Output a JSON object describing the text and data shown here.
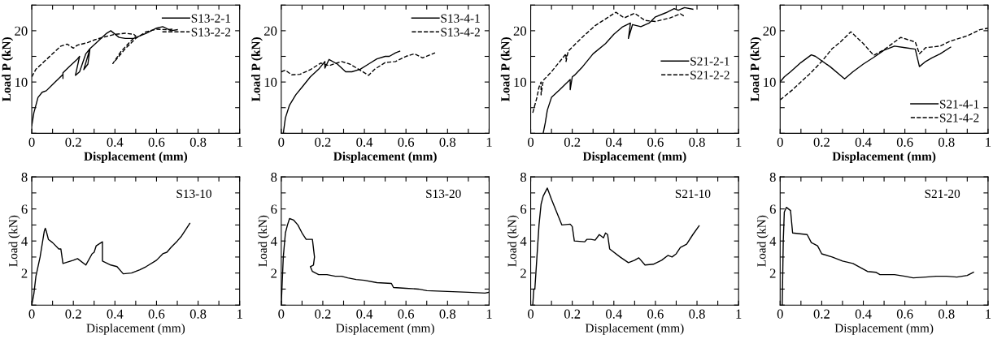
{
  "chart_data": [
    {
      "type": "line",
      "xlabel": "Displacement (mm)",
      "ylabel": "Load P (kN)",
      "xlim": [
        0,
        1
      ],
      "ylim": [
        0,
        25
      ],
      "xticks": [
        0,
        {
          "value": 0.1,
          "label": null
        },
        0.2,
        {
          "value": 0.3,
          "label": null
        },
        0.4,
        {
          "value": 0.5,
          "label": null
        },
        0.6,
        {
          "value": 0.7,
          "label": null
        },
        0.8,
        {
          "value": 0.9,
          "label": null
        },
        1
      ],
      "yticks": [
        {
          "value": 0,
          "label": null
        },
        {
          "value": 5,
          "label": null
        },
        10,
        {
          "value": 15,
          "label": null
        },
        20,
        {
          "value": 25,
          "label": null
        }
      ],
      "legend": "top right",
      "series": [
        {
          "name": "S13-2-1",
          "color": "#000000",
          "line_style": "solid",
          "x": [
            0,
            0.01,
            0.03,
            0.05,
            0.07,
            0.1,
            0.15,
            0.15,
            0.15,
            0.18,
            0.22,
            0.23,
            0.21,
            0.23,
            0.26,
            0.28,
            0.25,
            0.27,
            0.28,
            0.32,
            0.36,
            0.38,
            0.42,
            0.45,
            0.49,
            0.55,
            0.6,
            0.63,
            0.67,
            0.7
          ],
          "values": [
            1.5,
            4,
            7,
            8,
            8.3,
            9.5,
            11.5,
            10.7,
            11.8,
            13,
            14.5,
            15,
            11.3,
            12,
            15.5,
            16.5,
            12.4,
            13.5,
            16.5,
            18,
            19.5,
            20,
            18.7,
            18.5,
            18.5,
            19.5,
            20.5,
            20.8,
            20,
            20.2
          ]
        },
        {
          "name": "S13-2-2",
          "color": "#000000",
          "line_style": "dashed",
          "x": [
            0,
            0.02,
            0.06,
            0.1,
            0.14,
            0.17,
            0.2,
            0.22,
            0.27,
            0.3,
            0.35,
            0.4,
            0.45,
            0.49,
            0.5,
            0.43,
            0.39,
            0.45,
            0.5,
            0.55,
            0.6,
            0.65,
            0.68
          ],
          "values": [
            11,
            12.5,
            14,
            15.5,
            17,
            17.4,
            16.6,
            17.2,
            17.7,
            18.2,
            18.8,
            19.3,
            19.5,
            19.3,
            19,
            16,
            13.6,
            16.5,
            18.5,
            19.8,
            20.3,
            20.2,
            20.3
          ]
        }
      ]
    },
    {
      "type": "line",
      "xlabel": "Displacement (mm)",
      "ylabel": "Load P (kN)",
      "xlim": [
        0,
        1
      ],
      "ylim": [
        0,
        25
      ],
      "xticks": [
        0,
        {
          "value": 0.1,
          "label": null
        },
        0.2,
        {
          "value": 0.3,
          "label": null
        },
        0.4,
        {
          "value": 0.5,
          "label": null
        },
        0.6,
        {
          "value": 0.7,
          "label": null
        },
        0.8,
        {
          "value": 0.9,
          "label": null
        },
        1
      ],
      "yticks": [
        {
          "value": 0,
          "label": null
        },
        {
          "value": 5,
          "label": null
        },
        10,
        {
          "value": 15,
          "label": null
        },
        20,
        {
          "value": 25,
          "label": null
        }
      ],
      "legend": "top right",
      "series": [
        {
          "name": "S13-4-1",
          "color": "#000000",
          "line_style": "solid",
          "x": [
            0.01,
            0.02,
            0.04,
            0.07,
            0.1,
            0.14,
            0.18,
            0.21,
            0.21,
            0.23,
            0.27,
            0.31,
            0.34,
            0.38,
            0.42,
            0.46,
            0.5,
            0.52,
            0.55,
            0.57
          ],
          "values": [
            0,
            3,
            5.5,
            7.5,
            9,
            11,
            12.5,
            14,
            12.7,
            14.4,
            13.5,
            12,
            12,
            12.5,
            13.5,
            14.5,
            15,
            15,
            15.7,
            16
          ]
        },
        {
          "name": "S13-4-2",
          "color": "#000000",
          "line_style": "dashed",
          "x": [
            0,
            0.02,
            0.05,
            0.09,
            0.14,
            0.19,
            0.23,
            0.29,
            0.33,
            0.38,
            0.42,
            0.45,
            0.5,
            0.55,
            0.6,
            0.64,
            0.68,
            0.74
          ],
          "values": [
            12,
            12.3,
            11.4,
            11.5,
            12.4,
            13.7,
            13.2,
            14,
            13.5,
            12.3,
            11.3,
            12.5,
            13.8,
            14,
            15,
            15.5,
            14.7,
            15.7
          ]
        }
      ]
    },
    {
      "type": "line",
      "xlabel": "Displacement (mm)",
      "ylabel": "Load P (kN)",
      "xlim": [
        0,
        1
      ],
      "ylim": [
        0,
        25
      ],
      "xticks": [
        0,
        {
          "value": 0.1,
          "label": null
        },
        0.2,
        {
          "value": 0.3,
          "label": null
        },
        0.4,
        {
          "value": 0.5,
          "label": null
        },
        0.6,
        {
          "value": 0.7,
          "label": null
        },
        0.8,
        {
          "value": 0.9,
          "label": null
        },
        1
      ],
      "yticks": [
        {
          "value": 0,
          "label": null
        },
        {
          "value": 5,
          "label": null
        },
        10,
        {
          "value": 15,
          "label": null
        },
        20,
        {
          "value": 25,
          "label": null
        }
      ],
      "legend": "right",
      "series": [
        {
          "name": "S21-2-1",
          "color": "#000000",
          "line_style": "solid",
          "x": [
            0.06,
            0.07,
            0.08,
            0.1,
            0.14,
            0.19,
            0.19,
            0.2,
            0.21,
            0.25,
            0.3,
            0.36,
            0.4,
            0.44,
            0.48,
            0.47,
            0.49,
            0.53,
            0.57,
            0.6,
            0.65,
            0.69,
            0.71,
            0.74,
            0.78
          ],
          "values": [
            0,
            2,
            4.5,
            7,
            8.5,
            10.5,
            8.5,
            11,
            11.3,
            13,
            15.5,
            17.5,
            19.3,
            20.7,
            21.5,
            18.5,
            21.2,
            20.8,
            21.5,
            22.7,
            23.5,
            24.3,
            24,
            24.5,
            24.2
          ]
        },
        {
          "name": "S21-2-2",
          "color": "#000000",
          "line_style": "dashed",
          "x": [
            0.01,
            0.03,
            0.04,
            0.05,
            0.05,
            0.06,
            0.1,
            0.17,
            0.17,
            0.18,
            0.25,
            0.31,
            0.36,
            0.41,
            0.45,
            0.5,
            0.55,
            0.6,
            0.67,
            0.72,
            0.74
          ],
          "values": [
            4,
            7,
            9,
            10,
            7.5,
            10.3,
            12,
            15.5,
            14,
            16,
            18.8,
            21,
            22.3,
            23.6,
            22.5,
            23.4,
            22,
            21.8,
            22.5,
            23.3,
            22.8
          ]
        }
      ]
    },
    {
      "type": "line",
      "xlabel": "Displacement (mm)",
      "ylabel": "Load P (kN)",
      "xlim": [
        0,
        1
      ],
      "ylim": [
        0,
        25
      ],
      "xticks": [
        0,
        {
          "value": 0.1,
          "label": null
        },
        0.2,
        {
          "value": 0.3,
          "label": null
        },
        0.4,
        {
          "value": 0.5,
          "label": null
        },
        0.6,
        {
          "value": 0.7,
          "label": null
        },
        0.8,
        {
          "value": 0.9,
          "label": null
        },
        1
      ],
      "yticks": [
        {
          "value": 0,
          "label": null
        },
        {
          "value": 5,
          "label": null
        },
        10,
        {
          "value": 15,
          "label": null
        },
        20,
        {
          "value": 25,
          "label": null
        }
      ],
      "legend": "bottom right",
      "series": [
        {
          "name": "S21-4-1",
          "color": "#000000",
          "line_style": "solid",
          "x": [
            0,
            0.02,
            0.05,
            0.1,
            0.15,
            0.17,
            0.24,
            0.31,
            0.35,
            0.4,
            0.45,
            0.5,
            0.55,
            0.6,
            0.65,
            0.67,
            0.7,
            0.73,
            0.77,
            0.82
          ],
          "values": [
            10,
            11,
            12,
            13.8,
            15.3,
            15,
            13,
            10.6,
            12,
            13.5,
            14.8,
            16.2,
            17,
            16.7,
            16.4,
            13,
            14,
            14.7,
            15.5,
            16.8
          ]
        },
        {
          "name": "S21-4-2",
          "color": "#000000",
          "line_style": "dashed",
          "x": [
            0,
            0.06,
            0.14,
            0.2,
            0.25,
            0.29,
            0.34,
            0.4,
            0.45,
            0.5,
            0.58,
            0.65,
            0.67,
            0.7,
            0.77,
            0.82,
            0.9,
            0.96,
            1
          ],
          "values": [
            6.5,
            8.5,
            11.5,
            14,
            16.5,
            17.8,
            19.8,
            17.5,
            15.2,
            16.3,
            18.7,
            17.8,
            15.5,
            16.7,
            17,
            18,
            19,
            20.2,
            20.5
          ]
        }
      ]
    },
    {
      "type": "line",
      "xlabel": "Displacement (mm)",
      "ylabel": "Load (kN)",
      "xlim": [
        0,
        1
      ],
      "ylim": [
        0,
        8
      ],
      "xticks": [
        0,
        {
          "value": 0.1,
          "label": null
        },
        0.2,
        {
          "value": 0.3,
          "label": null
        },
        0.4,
        {
          "value": 0.5,
          "label": null
        },
        0.6,
        {
          "value": 0.7,
          "label": null
        },
        0.8,
        {
          "value": 0.9,
          "label": null
        },
        1
      ],
      "yticks": [
        {
          "value": 0,
          "label": null
        },
        {
          "value": 1,
          "label": null
        },
        2,
        {
          "value": 3,
          "label": null
        },
        4,
        {
          "value": 5,
          "label": null
        },
        6,
        {
          "value": 7,
          "label": null
        },
        8
      ],
      "annotations": [
        "S13-10"
      ],
      "series": [
        {
          "color": "#000000",
          "line_style": "solid",
          "x": [
            0,
            0.01,
            0.02,
            0.04,
            0.06,
            0.065,
            0.07,
            0.08,
            0.1,
            0.13,
            0.14,
            0.15,
            0.2,
            0.22,
            0.26,
            0.29,
            0.3,
            0.31,
            0.34,
            0.34,
            0.38,
            0.41,
            0.44,
            0.48,
            0.52,
            0.55,
            0.6,
            0.63,
            0.65,
            0.67,
            0.7,
            0.72,
            0.74,
            0.76
          ],
          "values": [
            0,
            0.7,
            1.8,
            3,
            4.6,
            4.8,
            4.6,
            4.1,
            3.9,
            3.5,
            3.5,
            2.6,
            2.8,
            2.9,
            2.5,
            3.2,
            3.3,
            3.7,
            3.95,
            2.75,
            2.5,
            2.4,
            1.95,
            2,
            2.2,
            2.4,
            2.8,
            3.2,
            3.3,
            3.6,
            4,
            4.3,
            4.7,
            5.1
          ]
        }
      ]
    },
    {
      "type": "line",
      "xlabel": "Displacement (mm)",
      "ylabel": "Load (kN)",
      "xlim": [
        0,
        1
      ],
      "ylim": [
        0,
        8
      ],
      "xticks": [
        0,
        {
          "value": 0.1,
          "label": null
        },
        0.2,
        {
          "value": 0.3,
          "label": null
        },
        0.4,
        {
          "value": 0.5,
          "label": null
        },
        0.6,
        {
          "value": 0.7,
          "label": null
        },
        0.8,
        {
          "value": 0.9,
          "label": null
        },
        1
      ],
      "yticks": [
        {
          "value": 0,
          "label": null
        },
        {
          "value": 1,
          "label": null
        },
        2,
        {
          "value": 3,
          "label": null
        },
        4,
        {
          "value": 5,
          "label": null
        },
        6,
        {
          "value": 7,
          "label": null
        },
        8
      ],
      "annotations": [
        "S13-20"
      ],
      "series": [
        {
          "color": "#000000",
          "line_style": "solid",
          "x": [
            0,
            0.01,
            0.02,
            0.03,
            0.04,
            0.06,
            0.08,
            0.1,
            0.12,
            0.15,
            0.16,
            0.155,
            0.14,
            0.15,
            0.18,
            0.22,
            0.26,
            0.29,
            0.32,
            0.36,
            0.4,
            0.46,
            0.53,
            0.54,
            0.6,
            0.66,
            0.7,
            0.8,
            0.9,
            0.98,
            1
          ],
          "values": [
            0,
            3,
            4.5,
            5,
            5.4,
            5.3,
            5,
            4.5,
            4.1,
            4.1,
            3,
            2.5,
            2.4,
            2.1,
            1.9,
            1.9,
            1.8,
            1.8,
            1.7,
            1.6,
            1.55,
            1.4,
            1.35,
            1.1,
            1.05,
            1,
            0.9,
            0.85,
            0.8,
            0.75,
            0.8
          ]
        }
      ]
    },
    {
      "type": "line",
      "xlabel": "Displacement (mm)",
      "ylabel": "Load (kN)",
      "xlim": [
        0,
        1
      ],
      "ylim": [
        0,
        8
      ],
      "xticks": [
        0,
        {
          "value": 0.1,
          "label": null
        },
        0.2,
        {
          "value": 0.3,
          "label": null
        },
        0.4,
        {
          "value": 0.5,
          "label": null
        },
        0.6,
        {
          "value": 0.7,
          "label": null
        },
        0.8,
        {
          "value": 0.9,
          "label": null
        },
        1
      ],
      "yticks": [
        {
          "value": 0,
          "label": null
        },
        {
          "value": 1,
          "label": null
        },
        2,
        {
          "value": 3,
          "label": null
        },
        4,
        {
          "value": 5,
          "label": null
        },
        6,
        {
          "value": 7,
          "label": null
        },
        8
      ],
      "annotations": [
        "S21-10"
      ],
      "series": [
        {
          "color": "#000000",
          "line_style": "solid",
          "x": [
            0.01,
            0.015,
            0.02,
            0.03,
            0.04,
            0.05,
            0.06,
            0.08,
            0.1,
            0.15,
            0.19,
            0.2,
            0.21,
            0.26,
            0.27,
            0.29,
            0.31,
            0.33,
            0.35,
            0.36,
            0.37,
            0.38,
            0.43,
            0.47,
            0.5,
            0.52,
            0.55,
            0.59,
            0.63,
            0.66,
            0.68,
            0.7,
            0.72,
            0.75,
            0.78,
            0.81
          ],
          "values": [
            0,
            1,
            1,
            3,
            5,
            6.3,
            6.8,
            7.3,
            6.6,
            5,
            5.05,
            4.9,
            4,
            3.95,
            4.1,
            4.1,
            4.05,
            4.4,
            4.2,
            4.5,
            4.4,
            3.5,
            3,
            2.65,
            2.8,
            2.95,
            2.5,
            2.55,
            2.8,
            3.1,
            3,
            3.2,
            3.6,
            3.8,
            4.4,
            4.95
          ]
        }
      ]
    },
    {
      "type": "line",
      "xlabel": "Displacement (mm)",
      "ylabel": "Load (kN)",
      "xlim": [
        0,
        1
      ],
      "ylim": [
        0,
        8
      ],
      "xticks": [
        0,
        {
          "value": 0.1,
          "label": null
        },
        0.2,
        {
          "value": 0.3,
          "label": null
        },
        0.4,
        {
          "value": 0.5,
          "label": null
        },
        0.6,
        {
          "value": 0.7,
          "label": null
        },
        0.8,
        {
          "value": 0.9,
          "label": null
        },
        1
      ],
      "yticks": [
        {
          "value": 0,
          "label": null
        },
        {
          "value": 1,
          "label": null
        },
        2,
        {
          "value": 3,
          "label": null
        },
        4,
        {
          "value": 5,
          "label": null
        },
        6,
        {
          "value": 7,
          "label": null
        },
        8
      ],
      "annotations": [
        "S21-20"
      ],
      "series": [
        {
          "color": "#000000",
          "line_style": "solid",
          "x": [
            0.01,
            0.015,
            0.02,
            0.03,
            0.04,
            0.05,
            0.06,
            0.13,
            0.15,
            0.18,
            0.2,
            0.25,
            0.3,
            0.35,
            0.42,
            0.46,
            0.48,
            0.55,
            0.6,
            0.64,
            0.7,
            0.75,
            0.8,
            0.85,
            0.9,
            0.93
          ],
          "values": [
            0,
            4,
            5.8,
            6.1,
            6,
            5.9,
            4.5,
            4.4,
            3.9,
            3.7,
            3.2,
            3,
            2.75,
            2.6,
            2.1,
            2.05,
            1.9,
            1.9,
            1.8,
            1.7,
            1.75,
            1.8,
            1.8,
            1.75,
            1.85,
            2.05
          ]
        }
      ]
    }
  ]
}
